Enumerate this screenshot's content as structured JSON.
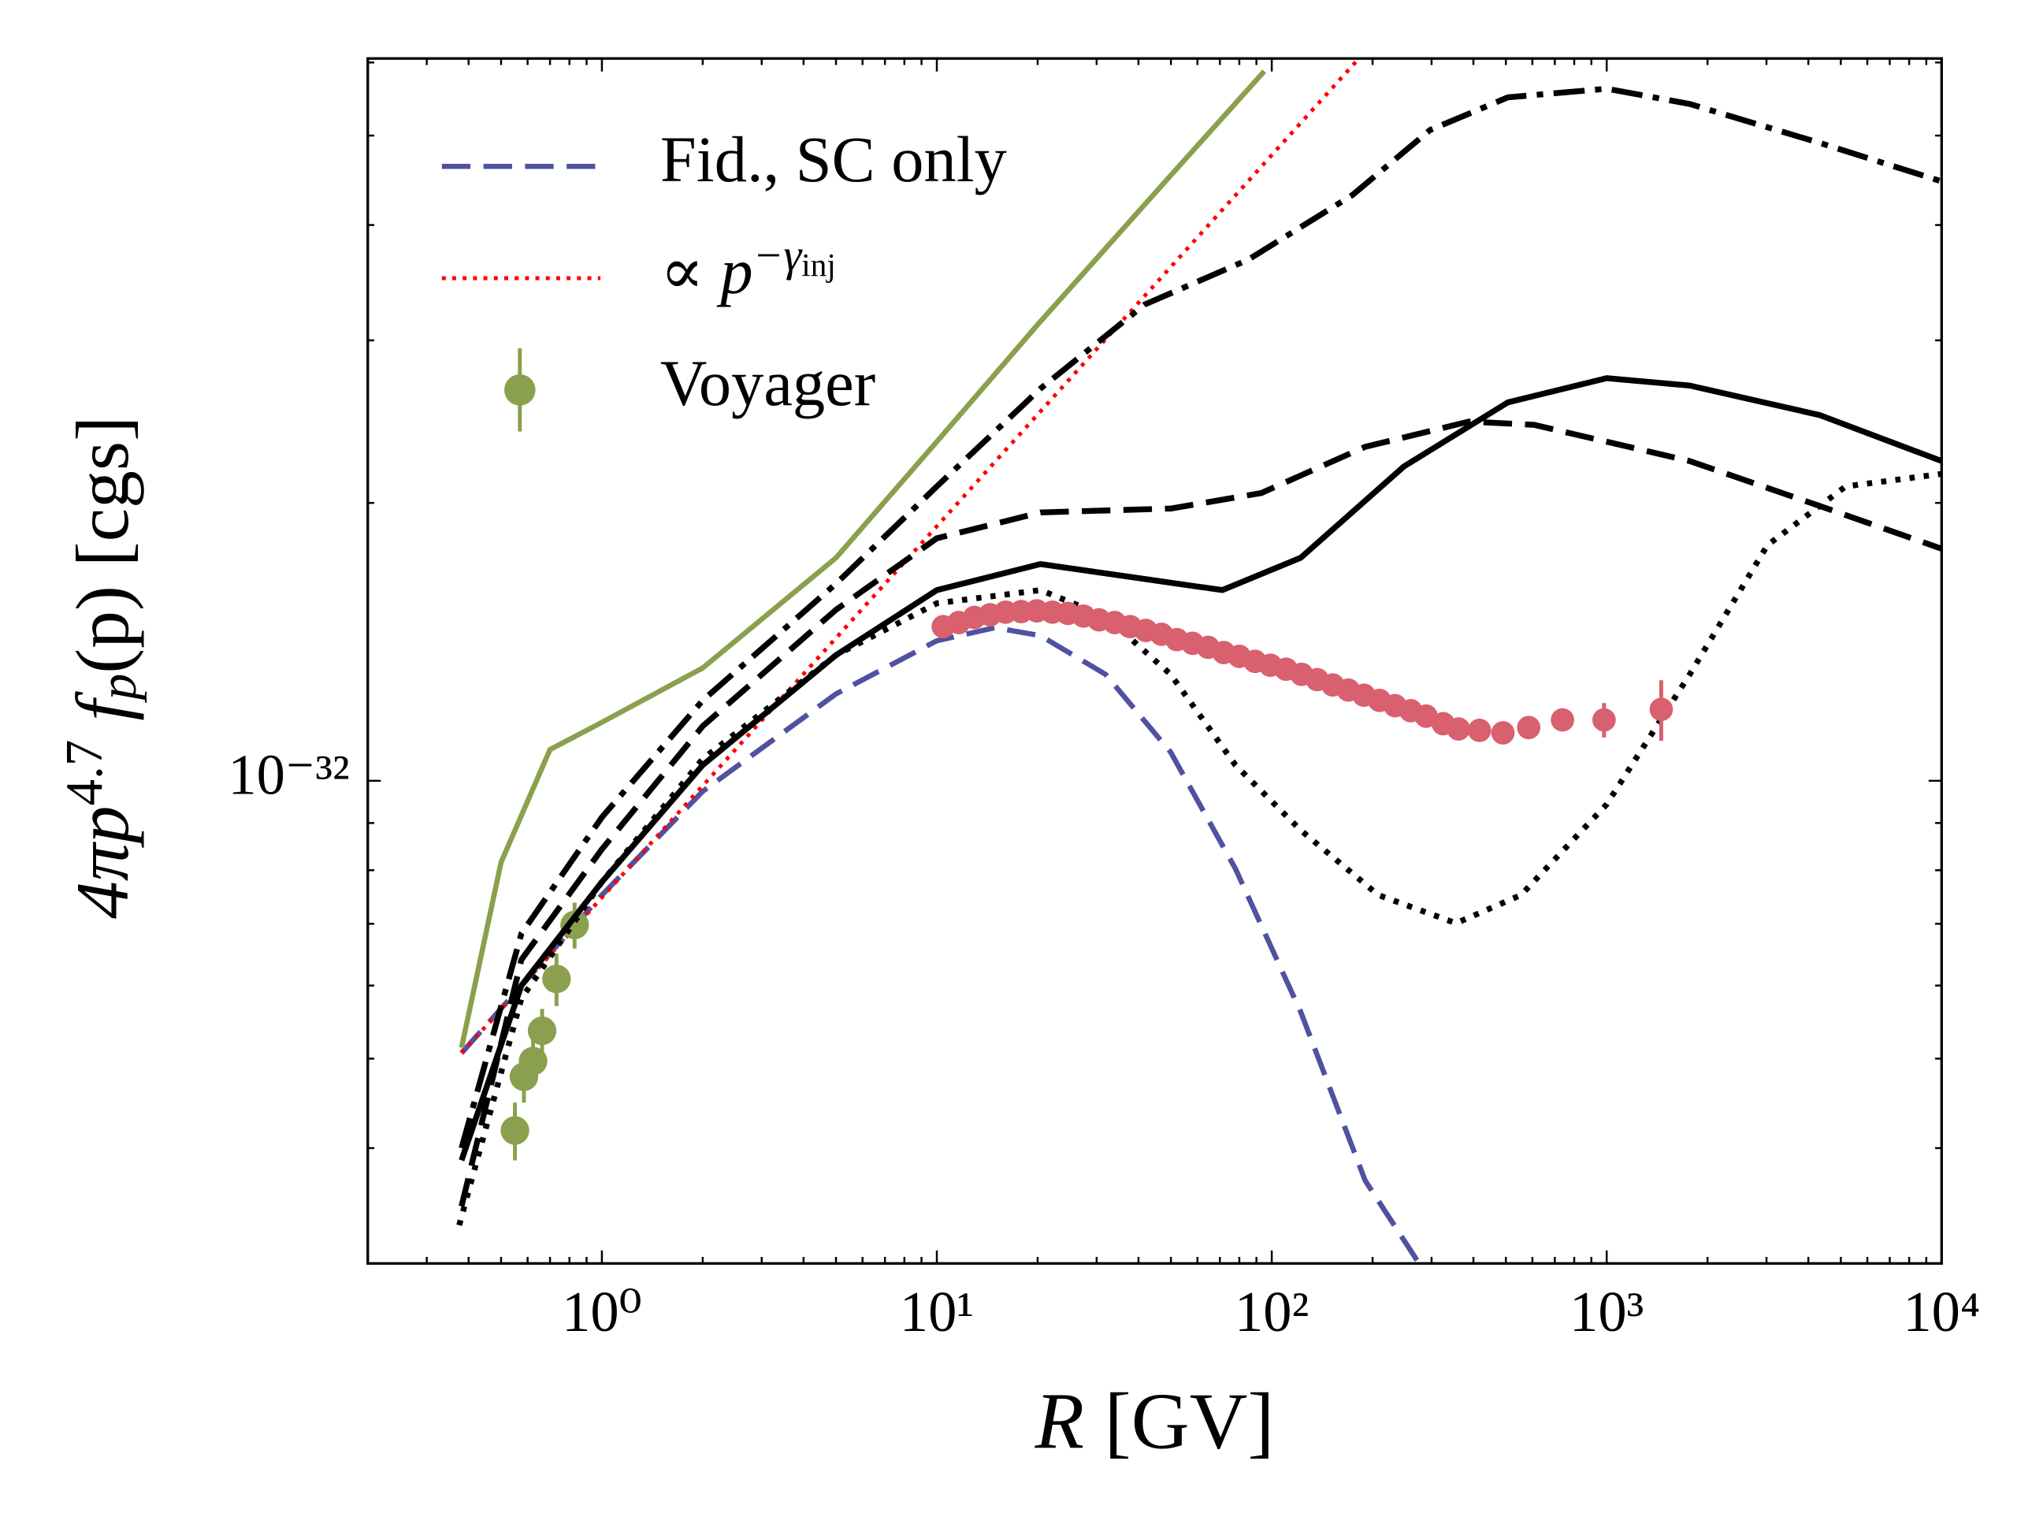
{
  "chart_data": {
    "type": "line",
    "log_x": true,
    "log_y": true,
    "xlim": [
      0.2,
      10000
    ],
    "ylim": [
      3e-33,
      6.06e-32
    ],
    "xticks": [
      {
        "value": 1,
        "label": "10⁰"
      },
      {
        "value": 10,
        "label": "10¹"
      },
      {
        "value": 100,
        "label": "10²"
      },
      {
        "value": 1000,
        "label": "10³"
      },
      {
        "value": 10000,
        "label": "10⁴"
      }
    ],
    "xminorticks": [
      0.2,
      0.3,
      0.4,
      0.5,
      0.6,
      0.7,
      0.8,
      0.9,
      2,
      3,
      4,
      5,
      6,
      7,
      8,
      9,
      20,
      30,
      40,
      50,
      60,
      70,
      80,
      90,
      200,
      300,
      400,
      500,
      600,
      700,
      800,
      900,
      2000,
      3000,
      4000,
      5000,
      6000,
      7000,
      8000,
      9000
    ],
    "yticks": [
      {
        "value": 1e-32,
        "label": "10⁻³²"
      }
    ],
    "yminorticks": [
      3e-33,
      4e-33,
      5e-33,
      6e-33,
      7e-33,
      8e-33,
      9e-33,
      2e-32,
      3e-32,
      4e-32,
      5e-32,
      6e-32
    ],
    "xlabel": [
      {
        "text": "R",
        "italic": true
      },
      {
        "text": " [GV]"
      }
    ],
    "ylabel": [
      {
        "text": "4πp",
        "italic": true
      },
      {
        "text": "4.7",
        "sup": true
      },
      {
        "text": " f",
        "italic": true
      },
      {
        "text": "p",
        "sub": true,
        "italic": true
      },
      {
        "text": "(p) [cgs]"
      }
    ],
    "legend": "upper left",
    "series": [
      {
        "name": "Fid.,  SC only",
        "kind": "line",
        "dash": "dashed",
        "color": "#4f52a0",
        "x": [
          0.381,
          1,
          2,
          5,
          10,
          14.9,
          20.4,
          31.9,
          49.9,
          77.9,
          122,
          190,
          272
        ],
        "values": [
          5.07e-33,
          7.52e-33,
          9.74e-33,
          1.242e-32,
          1.418e-32,
          1.465e-32,
          1.436e-32,
          1.304e-32,
          1.074e-32,
          8.03e-33,
          5.62e-33,
          3.69e-33,
          3.02e-33
        ]
      },
      {
        "name": [
          {
            "text": "∝ p",
            "italic": true
          },
          {
            "text": "−γ",
            "sup": true,
            "italic": true
          },
          {
            "text": "inj",
            "supsub": true
          }
        ],
        "kind": "line",
        "dash": "dotted",
        "color": "#ff0000",
        "x": [
          0.381,
          182
        ],
        "values": [
          5.07e-33,
          6.06e-32
        ]
      },
      {
        "name": "Voyager",
        "kind": "points",
        "color": "#8aa04e",
        "x": [
          0.55,
          0.585,
          0.623,
          0.663,
          0.732,
          0.829
        ],
        "values": [
          4.18e-33,
          4.78e-33,
          4.97e-33,
          5.36e-33,
          6.1e-33,
          6.98e-33
        ],
        "errors": [
          3e-34,
          3e-34,
          3e-34,
          3e-34,
          4e-34,
          4e-34
        ]
      },
      {
        "kind": "line",
        "dash": "solid",
        "color": "#8aa04e",
        "x": [
          0.381,
          0.5,
          0.7,
          1,
          2,
          5,
          10,
          20,
          50,
          95
        ],
        "values": [
          5.14e-33,
          8.16e-33,
          1.081e-32,
          1.157e-32,
          1.325e-32,
          1.744e-32,
          2.33e-32,
          3.12e-32,
          4.53e-32,
          5.87e-32
        ]
      },
      {
        "kind": "line",
        "dash": "solid",
        "color": "#000000",
        "x": [
          0.381,
          0.575,
          1,
          2,
          5,
          10,
          20.4,
          38.1,
          71.2,
          122,
          248,
          507,
          1000,
          1770,
          4320,
          10000
        ],
        "values": [
          3.88e-33,
          6e-33,
          7.77e-33,
          1.04e-32,
          1.368e-32,
          1.609e-32,
          1.717e-32,
          1.662e-32,
          1.609e-32,
          1.744e-32,
          2.19e-32,
          2.57e-32,
          2.73e-32,
          2.68e-32,
          2.49e-32,
          2.22e-32
        ]
      },
      {
        "kind": "line",
        "dash": "dashed",
        "color": "#000000",
        "x": [
          0.381,
          0.575,
          1,
          2,
          5,
          10,
          20.4,
          49.9,
          93.1,
          190,
          388,
          607,
          1770,
          4320,
          10000
        ],
        "values": [
          3.46e-33,
          6.4e-33,
          8.43e-33,
          1.146e-32,
          1.532e-32,
          1.831e-32,
          1.953e-32,
          1.972e-32,
          2.05e-32,
          2.3e-32,
          2.45e-32,
          2.43e-32,
          2.22e-32,
          1.985e-32,
          1.784e-32
        ]
      },
      {
        "kind": "line",
        "dash": "dashdot",
        "color": "#000000",
        "x": [
          0.381,
          0.575,
          1,
          2,
          5,
          10,
          20.4,
          41.7,
          85.2,
          174,
          297,
          507,
          1000,
          1770,
          4320,
          10000
        ],
        "values": [
          4e-33,
          6.83e-33,
          9.13e-33,
          1.222e-32,
          1.635e-32,
          2.084e-32,
          2.66e-32,
          3.28e-32,
          3.67e-32,
          4.31e-32,
          5.07e-32,
          5.5e-32,
          5.62e-32,
          5.41e-32,
          4.91e-32,
          4.46e-32
        ]
      },
      {
        "kind": "line",
        "dash": "dotted",
        "color": "#000000",
        "x": [
          0.375,
          0.575,
          1,
          2,
          5,
          10,
          20.4,
          31.9,
          49.9,
          77.9,
          122,
          208,
          355,
          555,
          1000,
          1770,
          3020,
          5170,
          10000
        ],
        "values": [
          3.3e-33,
          5.81e-33,
          7.77e-33,
          1.056e-32,
          1.368e-32,
          1.557e-32,
          1.609e-32,
          1.507e-32,
          1.304e-32,
          1.04e-32,
          8.84e-33,
          7.52e-33,
          7.01e-33,
          7.52e-33,
          9.43e-33,
          1.304e-32,
          1.8e-32,
          2.084e-32,
          2.15e-32
        ]
      },
      {
        "kind": "points",
        "color": "#d9606e",
        "x": [
          10.45,
          11.63,
          12.95,
          14.42,
          16.05,
          17.86,
          19.88,
          22.13,
          24.63,
          27.42,
          30.5,
          33.97,
          37.8,
          42.1,
          46.9,
          52.1,
          58,
          64.6,
          71.9,
          80,
          89.1,
          99.1,
          110.3,
          122.8,
          136.7,
          152.1,
          169.3,
          188.5,
          209.8,
          233.5,
          260,
          289,
          325,
          361,
          417,
          490,
          585,
          738,
          982,
          1455
        ],
        "values": [
          1.469e-32,
          1.484e-32,
          1.503e-32,
          1.513e-32,
          1.523e-32,
          1.525e-32,
          1.528e-32,
          1.523e-32,
          1.518e-32,
          1.508e-32,
          1.494e-32,
          1.484e-32,
          1.469e-32,
          1.455e-32,
          1.441e-32,
          1.422e-32,
          1.409e-32,
          1.395e-32,
          1.377e-32,
          1.364e-32,
          1.347e-32,
          1.334e-32,
          1.321e-32,
          1.304e-32,
          1.287e-32,
          1.27e-32,
          1.254e-32,
          1.238e-32,
          1.222e-32,
          1.206e-32,
          1.191e-32,
          1.175e-32,
          1.153e-32,
          1.138e-32,
          1.134e-32,
          1.127e-32,
          1.142e-32,
          1.164e-32,
          1.164e-32,
          1.195e-32
        ],
        "errors": [
          5e-35,
          5e-35,
          5e-35,
          5e-35,
          5e-35,
          5e-35,
          5e-35,
          5e-35,
          5e-35,
          5e-35,
          5e-35,
          5e-35,
          5e-35,
          5e-35,
          5e-35,
          5e-35,
          5e-35,
          5e-35,
          5e-35,
          5e-35,
          5e-35,
          5e-35,
          5e-35,
          5e-35,
          5e-35,
          5e-35,
          5e-35,
          5e-35,
          5e-35,
          5e-35,
          5e-35,
          5e-35,
          5e-35,
          5e-35,
          5e-35,
          5e-35,
          1e-34,
          2e-34,
          5e-34,
          9e-34
        ]
      }
    ]
  }
}
